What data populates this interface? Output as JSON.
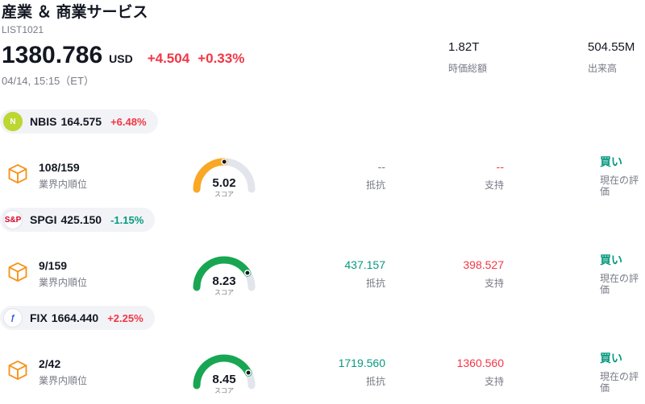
{
  "header": {
    "title": "産業 ＆ 商業サービス",
    "subtitle": "LIST1021",
    "price": "1380.786",
    "currency": "USD",
    "change": "+4.504",
    "change_pct": "+0.33%",
    "change_color": "#f23645",
    "datetime": "04/14, 15:15（ET）",
    "market_cap": {
      "value": "1.82T",
      "label": "時価総額"
    },
    "volume": {
      "value": "504.55M",
      "label": "出来高"
    }
  },
  "labels": {
    "rank": "業界内順位",
    "score": "スコア",
    "resistance": "抵抗",
    "support": "支持",
    "rating": "現在の評価"
  },
  "colors": {
    "up": "#f23645",
    "down": "#089981",
    "muted": "#787b86",
    "industry_icon": "#f7931a"
  },
  "sections": [
    {
      "ticker": "NBIS",
      "price": "164.575",
      "change": "+6.48%",
      "change_color": "#f23645",
      "rank": "108/159",
      "score": "5.02",
      "score_value": 5.02,
      "gauge_color": "#f9a825",
      "resistance": "--",
      "resistance_color": "#787b86",
      "support": "--",
      "support_color": "#f23645",
      "rating": "買い",
      "rating_color": "#089981",
      "logo": {
        "text": "N",
        "bg": "#bcd632",
        "color": "#ffffff",
        "border": "#bcd632"
      }
    },
    {
      "ticker": "SPGI",
      "price": "425.150",
      "change": "-1.15%",
      "change_color": "#089981",
      "rank": "9/159",
      "score": "8.23",
      "score_value": 8.23,
      "gauge_color": "#18a652",
      "resistance": "437.157",
      "resistance_color": "#089981",
      "support": "398.527",
      "support_color": "#f23645",
      "rating": "買い",
      "rating_color": "#089981",
      "logo": {
        "text": "S&P",
        "bg": "#ffffff",
        "color": "#d6002a",
        "border": "#e0e3eb"
      }
    },
    {
      "ticker": "FIX",
      "price": "1664.440",
      "change": "+2.25%",
      "change_color": "#f23645",
      "rank": "2/42",
      "score": "8.45",
      "score_value": 8.45,
      "gauge_color": "#18a652",
      "resistance": "1719.560",
      "resistance_color": "#089981",
      "support": "1360.560",
      "support_color": "#f23645",
      "rating": "買い",
      "rating_color": "#089981",
      "logo": {
        "text": "ƒ",
        "bg": "#ffffff",
        "color": "#2457d6",
        "border": "#e0e3eb"
      }
    }
  ]
}
